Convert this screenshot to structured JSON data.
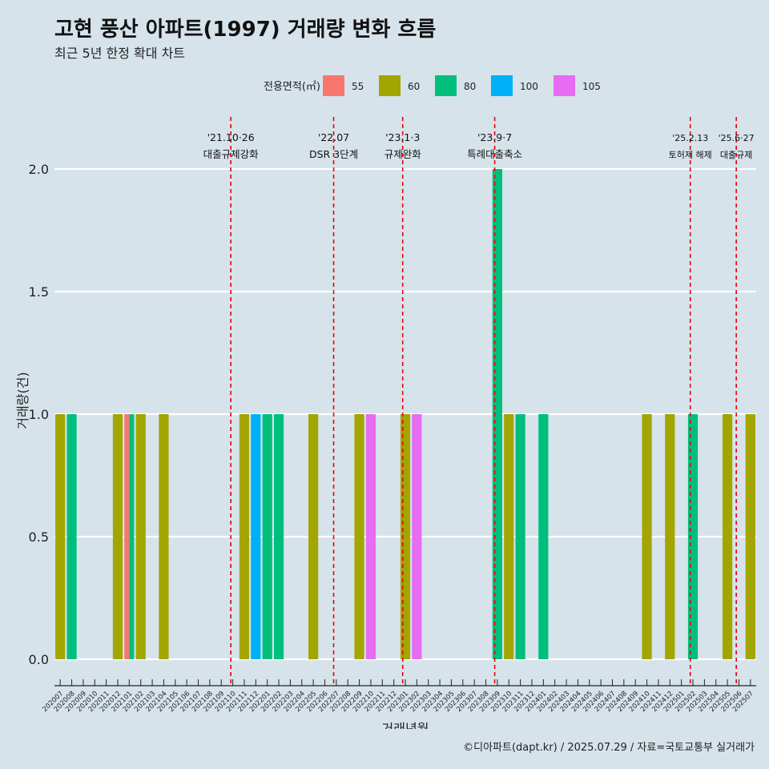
{
  "chart_data": {
    "type": "bar",
    "title": "고현 풍산 아파트(1997) 거래량 변화 흐름",
    "subtitle": "최근 5년 한정 확대 차트",
    "xlabel": "거래년월",
    "ylabel": "거래량(건)",
    "ylim": [
      0,
      2.2
    ],
    "yticks": [
      "0.0",
      "0.5",
      "1.0",
      "1.5",
      "2.0"
    ],
    "ytick_values": [
      0,
      0.5,
      1,
      1.5,
      2
    ],
    "grid": true,
    "legend": {
      "title": "전용면적(㎡)",
      "position": "top",
      "entries": [
        {
          "label": "55",
          "color": "#f8766d"
        },
        {
          "label": "60",
          "color": "#a3a500"
        },
        {
          "label": "80",
          "color": "#00bf7d"
        },
        {
          "label": "100",
          "color": "#00b0f6"
        },
        {
          "label": "105",
          "color": "#e76bf3"
        }
      ]
    },
    "months": [
      "202007",
      "202008",
      "202009",
      "202010",
      "202011",
      "202012",
      "202101",
      "202102",
      "202103",
      "202104",
      "202105",
      "202106",
      "202107",
      "202108",
      "202109",
      "202110",
      "202111",
      "202112",
      "202201",
      "202202",
      "202203",
      "202204",
      "202205",
      "202206",
      "202207",
      "202208",
      "202209",
      "202210",
      "202211",
      "202212",
      "202301",
      "202302",
      "202303",
      "202304",
      "202305",
      "202306",
      "202307",
      "202308",
      "202309",
      "202310",
      "202311",
      "202312",
      "202401",
      "202402",
      "202403",
      "202404",
      "202405",
      "202406",
      "202407",
      "202408",
      "202409",
      "202410",
      "202411",
      "202412",
      "202501",
      "202502",
      "202503",
      "202504",
      "202505",
      "202506",
      "202507"
    ],
    "bars": [
      {
        "month": "202007",
        "series": "60",
        "value": 1
      },
      {
        "month": "202008",
        "series": "80",
        "value": 1
      },
      {
        "month": "202012",
        "series": "60",
        "value": 1
      },
      {
        "month": "202101",
        "series": "55",
        "value": 1
      },
      {
        "month": "202101",
        "series": "80",
        "value": 1
      },
      {
        "month": "202102",
        "series": "60",
        "value": 1
      },
      {
        "month": "202104",
        "series": "60",
        "value": 1
      },
      {
        "month": "202111",
        "series": "60",
        "value": 1
      },
      {
        "month": "202112",
        "series": "100",
        "value": 1
      },
      {
        "month": "202201",
        "series": "80",
        "value": 1
      },
      {
        "month": "202202",
        "series": "80",
        "value": 1
      },
      {
        "month": "202205",
        "series": "60",
        "value": 1
      },
      {
        "month": "202209",
        "series": "60",
        "value": 1
      },
      {
        "month": "202210",
        "series": "105",
        "value": 1
      },
      {
        "month": "202301",
        "series": "60",
        "value": 1
      },
      {
        "month": "202302",
        "series": "105",
        "value": 1
      },
      {
        "month": "202309",
        "series": "80",
        "value": 2
      },
      {
        "month": "202310",
        "series": "60",
        "value": 1
      },
      {
        "month": "202311",
        "series": "80",
        "value": 1
      },
      {
        "month": "202401",
        "series": "80",
        "value": 1
      },
      {
        "month": "202410",
        "series": "60",
        "value": 1
      },
      {
        "month": "202412",
        "series": "60",
        "value": 1
      },
      {
        "month": "202502",
        "series": "80",
        "value": 1
      },
      {
        "month": "202505",
        "series": "60",
        "value": 1
      },
      {
        "month": "202507",
        "series": "60",
        "value": 1
      }
    ],
    "annotations": [
      {
        "month_pos": 15.33,
        "date": "'21.10·26",
        "label": "대출규제강화",
        "small": false
      },
      {
        "month_pos": 24.27,
        "date": "'22.07",
        "label": "DSR 3단계",
        "small": false
      },
      {
        "month_pos": 30.27,
        "date": "'23.1·3",
        "label": "규제완화",
        "small": false
      },
      {
        "month_pos": 38.27,
        "date": "'23.9·7",
        "label": "특례대출축소",
        "small": false
      },
      {
        "month_pos": 55.27,
        "date": "'25.2.13",
        "label": "토허제 해제",
        "small": true
      },
      {
        "month_pos": 59.27,
        "date": "'25.6·27",
        "label": "대출규제",
        "small": true
      }
    ]
  },
  "caption": "©디아파트(dapt.kr) / 2025.07.29 / 자료=국토교통부 실거래가"
}
